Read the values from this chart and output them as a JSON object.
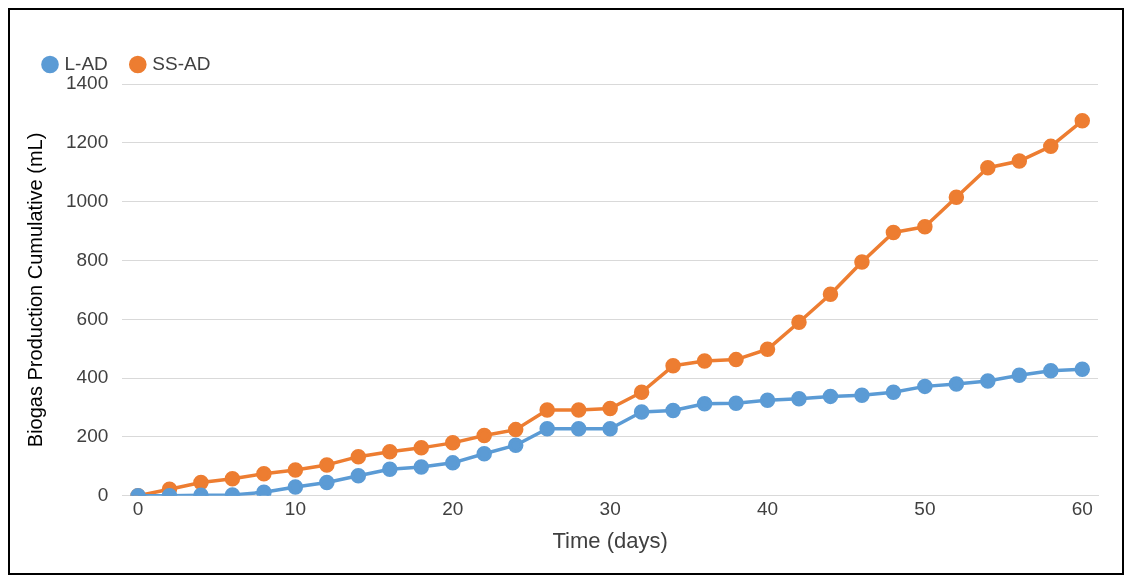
{
  "chart_data": {
    "type": "line",
    "xlabel": "Time (days)",
    "ylabel": "Biogas Production Cumulative (mL)",
    "x": [
      0,
      2,
      4,
      6,
      8,
      10,
      12,
      14,
      16,
      18,
      20,
      22,
      24,
      26,
      28,
      30,
      32,
      34,
      36,
      38,
      40,
      42,
      44,
      46,
      48,
      50,
      52,
      54,
      56,
      58,
      60
    ],
    "series": [
      {
        "name": "L-AD",
        "color": "#5b9bd5",
        "values": [
          0,
          0,
          2,
          3,
          12,
          30,
          45,
          68,
          90,
          98,
          112,
          143,
          172,
          228,
          228,
          228,
          285,
          290,
          313,
          315,
          325,
          330,
          338,
          342,
          352,
          372,
          380,
          390,
          410,
          425,
          430
        ]
      },
      {
        "name": "SS-AD",
        "color": "#ed7d31",
        "values": [
          0,
          22,
          45,
          58,
          75,
          88,
          105,
          133,
          150,
          163,
          180,
          205,
          225,
          292,
          292,
          297,
          352,
          442,
          458,
          463,
          498,
          590,
          685,
          795,
          895,
          915,
          1015,
          1115,
          1138,
          1188,
          1275
        ]
      }
    ],
    "xlim": [
      -1,
      61
    ],
    "xticks": [
      0,
      10,
      20,
      30,
      40,
      50,
      60
    ],
    "ylim": [
      0,
      1400
    ],
    "yticks": [
      0,
      200,
      400,
      600,
      800,
      1000,
      1200,
      1400
    ],
    "grid": "y",
    "legend": "top left",
    "marker": "circle",
    "line_style": "solid"
  }
}
